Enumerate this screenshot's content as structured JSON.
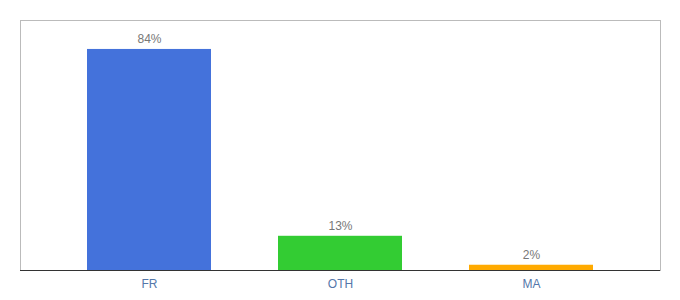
{
  "chart_data": {
    "type": "bar",
    "categories": [
      "FR",
      "OTH",
      "MA"
    ],
    "values": [
      84,
      13,
      2
    ],
    "value_labels": [
      "84%",
      "13%",
      "2%"
    ],
    "colors": [
      "#4472db",
      "#33cc33",
      "#ffaa00"
    ],
    "ylim": [
      0,
      95
    ],
    "data_labels": true,
    "tick_labels": "x"
  }
}
